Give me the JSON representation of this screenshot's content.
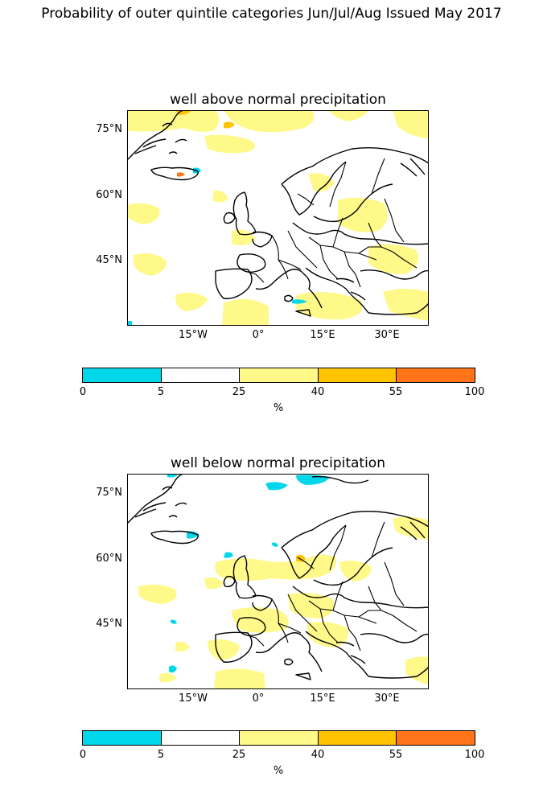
{
  "figure": {
    "suptitle": "Probability of outer quintile categories Jun/Jul/Aug Issued May 2017"
  },
  "maps": [
    {
      "title": "well above normal precipitation",
      "lat_labels": [
        "75°N",
        "60°N",
        "45°N"
      ],
      "lon_labels": [
        "15°W",
        "0°",
        "15°E",
        "30°E"
      ]
    },
    {
      "title": "well below normal precipitation",
      "lat_labels": [
        "75°N",
        "60°N",
        "45°N"
      ],
      "lon_labels": [
        "15°W",
        "0°",
        "15°E",
        "30°E"
      ]
    }
  ],
  "colorbar": {
    "tick_labels": [
      "0",
      "5",
      "25",
      "40",
      "55",
      "100"
    ],
    "unit": "%",
    "colors": [
      "#00d7ea",
      "#ffffff",
      "#fff98a",
      "#ffc300",
      "#ff7418"
    ],
    "bins": [
      [
        0,
        5
      ],
      [
        5,
        25
      ],
      [
        25,
        40
      ],
      [
        40,
        55
      ],
      [
        55,
        100
      ]
    ]
  }
}
